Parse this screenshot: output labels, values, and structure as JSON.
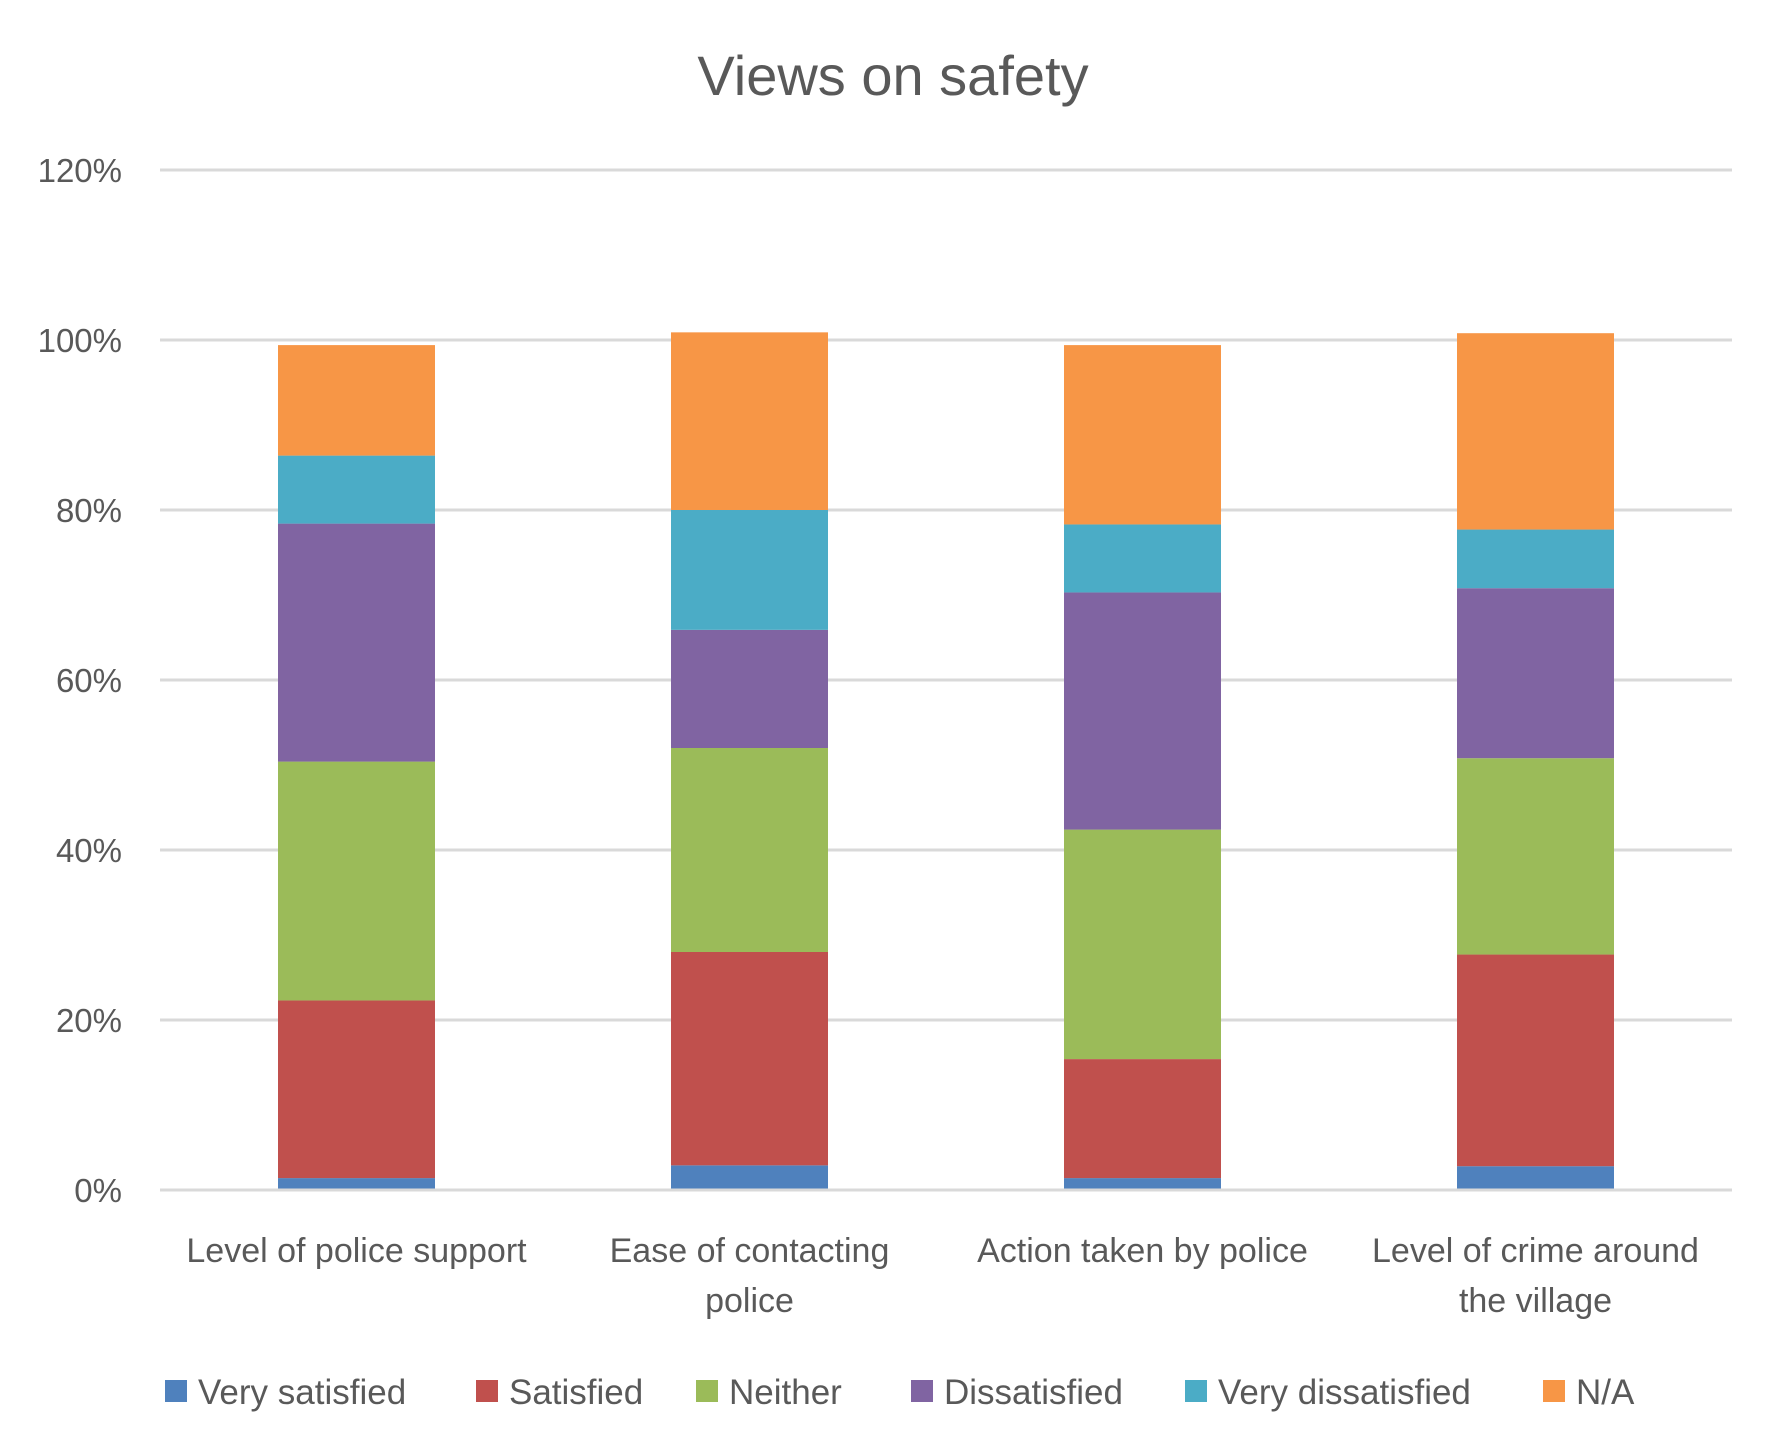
{
  "chart_data": {
    "type": "bar",
    "stacked": true,
    "title": "Views on safety",
    "xlabel": "",
    "ylabel": "",
    "ylim": [
      0,
      1.2
    ],
    "y_ticks": [
      0,
      0.2,
      0.4,
      0.6,
      0.8,
      1.0,
      1.2
    ],
    "y_tick_labels": [
      "0%",
      "20%",
      "40%",
      "60%",
      "80%",
      "100%",
      "120%"
    ],
    "grid": true,
    "legend_position": "bottom",
    "categories": [
      [
        "Level of police support"
      ],
      [
        "Ease of contacting",
        "police"
      ],
      [
        "Action taken by police"
      ],
      [
        "Level of crime around",
        "the village"
      ]
    ],
    "series": [
      {
        "name": "Very satisfied",
        "color": "#4f81bd",
        "values": [
          0.014,
          0.029,
          0.014,
          0.028
        ]
      },
      {
        "name": "Satisfied",
        "color": "#c0504d",
        "values": [
          0.209,
          0.251,
          0.14,
          0.249
        ]
      },
      {
        "name": "Neither",
        "color": "#9bbb59",
        "values": [
          0.281,
          0.24,
          0.27,
          0.231
        ]
      },
      {
        "name": "Dissatisfied",
        "color": "#8064a2",
        "values": [
          0.28,
          0.139,
          0.279,
          0.2
        ]
      },
      {
        "name": "Very dissatisfied",
        "color": "#4bacc6",
        "values": [
          0.08,
          0.141,
          0.08,
          0.069
        ]
      },
      {
        "name": "N/A",
        "color": "#f79646",
        "values": [
          0.13,
          0.209,
          0.211,
          0.231
        ]
      }
    ]
  }
}
